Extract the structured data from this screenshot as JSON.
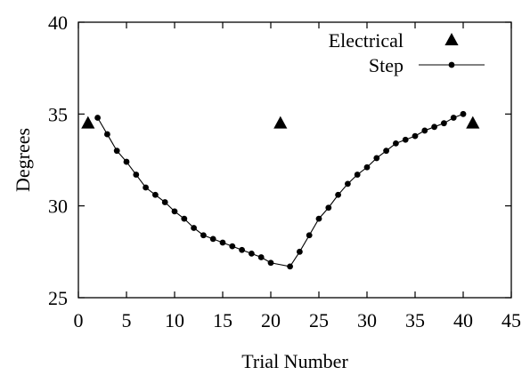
{
  "chart_data": {
    "type": "scatter",
    "title": "",
    "xlabel": "Trial Number",
    "ylabel": "Degrees",
    "xlim": [
      0,
      45
    ],
    "ylim": [
      25,
      40
    ],
    "xticks": [
      0,
      5,
      10,
      15,
      20,
      25,
      30,
      35,
      40,
      45
    ],
    "yticks": [
      25,
      30,
      35,
      40
    ],
    "grid": false,
    "legend_position": "top-right",
    "series": [
      {
        "name": "Electrical",
        "style": "markers",
        "marker": "triangle",
        "color": "#000000",
        "points": [
          {
            "x": 1,
            "y": 34.5
          },
          {
            "x": 21,
            "y": 34.5
          },
          {
            "x": 41,
            "y": 34.5
          }
        ]
      },
      {
        "name": "Step",
        "style": "line-markers",
        "marker": "circle",
        "color": "#000000",
        "points": [
          {
            "x": 2,
            "y": 34.8
          },
          {
            "x": 3,
            "y": 33.9
          },
          {
            "x": 4,
            "y": 33.0
          },
          {
            "x": 5,
            "y": 32.4
          },
          {
            "x": 6,
            "y": 31.7
          },
          {
            "x": 7,
            "y": 31.0
          },
          {
            "x": 8,
            "y": 30.6
          },
          {
            "x": 9,
            "y": 30.2
          },
          {
            "x": 10,
            "y": 29.7
          },
          {
            "x": 11,
            "y": 29.3
          },
          {
            "x": 12,
            "y": 28.8
          },
          {
            "x": 13,
            "y": 28.4
          },
          {
            "x": 14,
            "y": 28.2
          },
          {
            "x": 15,
            "y": 28.0
          },
          {
            "x": 16,
            "y": 27.8
          },
          {
            "x": 17,
            "y": 27.6
          },
          {
            "x": 18,
            "y": 27.4
          },
          {
            "x": 19,
            "y": 27.2
          },
          {
            "x": 20,
            "y": 26.9
          },
          {
            "x": 22,
            "y": 26.7
          },
          {
            "x": 23,
            "y": 27.5
          },
          {
            "x": 24,
            "y": 28.4
          },
          {
            "x": 25,
            "y": 29.3
          },
          {
            "x": 26,
            "y": 29.9
          },
          {
            "x": 27,
            "y": 30.6
          },
          {
            "x": 28,
            "y": 31.2
          },
          {
            "x": 29,
            "y": 31.7
          },
          {
            "x": 30,
            "y": 32.1
          },
          {
            "x": 31,
            "y": 32.6
          },
          {
            "x": 32,
            "y": 33.0
          },
          {
            "x": 33,
            "y": 33.4
          },
          {
            "x": 34,
            "y": 33.6
          },
          {
            "x": 35,
            "y": 33.8
          },
          {
            "x": 36,
            "y": 34.1
          },
          {
            "x": 37,
            "y": 34.3
          },
          {
            "x": 38,
            "y": 34.5
          },
          {
            "x": 39,
            "y": 34.8
          },
          {
            "x": 40,
            "y": 35.0
          }
        ]
      }
    ]
  }
}
